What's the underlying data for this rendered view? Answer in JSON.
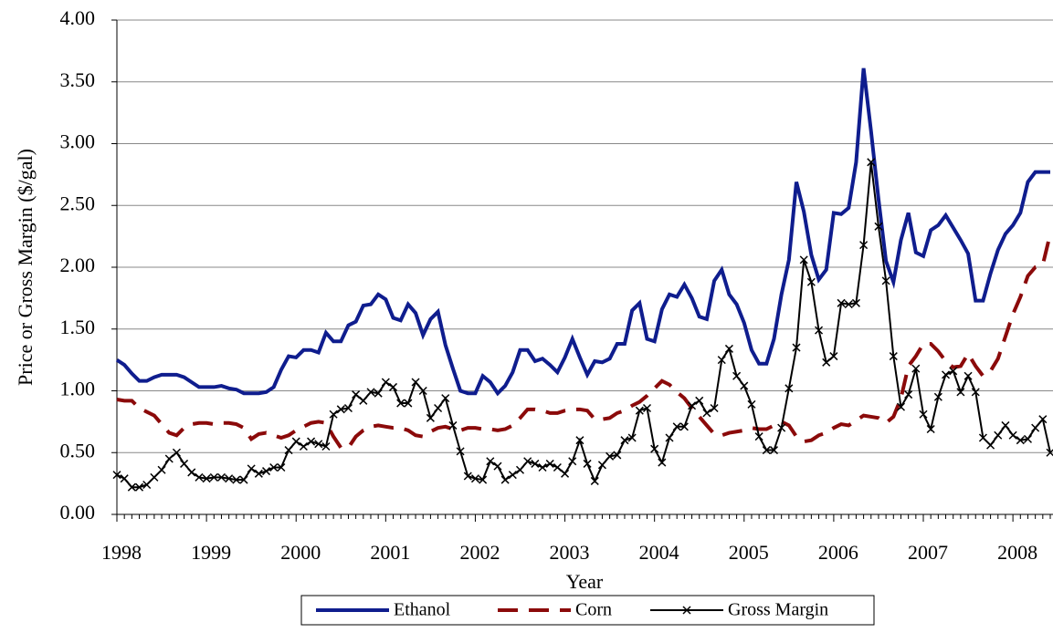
{
  "chart_data": {
    "type": "line",
    "x_label": "Year",
    "y_label": "Price or Gross Margin ($/gal)",
    "categories": [
      "1998",
      null,
      null,
      null,
      null,
      null,
      null,
      null,
      null,
      null,
      null,
      null,
      "1999",
      null,
      null,
      null,
      null,
      null,
      null,
      null,
      null,
      null,
      null,
      null,
      "2000",
      null,
      null,
      null,
      null,
      null,
      null,
      null,
      null,
      null,
      null,
      null,
      "2001",
      null,
      null,
      null,
      null,
      null,
      null,
      null,
      null,
      null,
      null,
      null,
      "2002",
      null,
      null,
      null,
      null,
      null,
      null,
      null,
      null,
      null,
      null,
      null,
      "2003",
      null,
      null,
      null,
      null,
      null,
      null,
      null,
      null,
      null,
      null,
      null,
      "2004",
      null,
      null,
      null,
      null,
      null,
      null,
      null,
      null,
      null,
      null,
      null,
      "2005",
      null,
      null,
      null,
      null,
      null,
      null,
      null,
      null,
      null,
      null,
      null,
      "2006",
      null,
      null,
      null,
      null,
      null,
      null,
      null,
      null,
      null,
      null,
      null,
      "2007",
      null,
      null,
      null,
      null,
      null,
      null,
      null,
      null,
      null,
      null,
      null,
      "2008",
      null,
      null,
      null,
      null,
      null
    ],
    "series": [
      {
        "name": "Ethanol",
        "color": "#0f1d8e",
        "line_style": "solid",
        "marker": "none",
        "values": [
          1.25,
          1.21,
          1.14,
          1.08,
          1.08,
          1.11,
          1.13,
          1.13,
          1.13,
          1.11,
          1.07,
          1.03,
          1.03,
          1.03,
          1.04,
          1.02,
          1.01,
          0.98,
          0.98,
          0.98,
          0.99,
          1.03,
          1.17,
          1.28,
          1.27,
          1.33,
          1.33,
          1.31,
          1.47,
          1.4,
          1.4,
          1.53,
          1.56,
          1.69,
          1.7,
          1.78,
          1.74,
          1.59,
          1.57,
          1.7,
          1.63,
          1.45,
          1.58,
          1.64,
          1.37,
          1.18,
          1.0,
          0.98,
          0.98,
          1.12,
          1.07,
          0.98,
          1.04,
          1.15,
          1.33,
          1.33,
          1.24,
          1.26,
          1.21,
          1.15,
          1.27,
          1.42,
          1.27,
          1.13,
          1.24,
          1.23,
          1.26,
          1.38,
          1.38,
          1.65,
          1.71,
          1.42,
          1.4,
          1.66,
          1.78,
          1.76,
          1.86,
          1.75,
          1.6,
          1.58,
          1.89,
          1.98,
          1.78,
          1.7,
          1.55,
          1.33,
          1.22,
          1.22,
          1.42,
          1.78,
          2.06,
          2.69,
          2.45,
          2.1,
          1.9,
          1.98,
          2.44,
          2.43,
          2.48,
          2.85,
          3.61,
          3.1,
          2.55,
          2.05,
          1.88,
          2.22,
          2.44,
          2.12,
          2.09,
          2.3,
          2.34,
          2.42,
          2.32,
          2.22,
          2.11,
          1.73,
          1.73,
          1.95,
          2.14,
          2.27,
          2.34,
          2.44,
          2.69,
          2.77,
          2.77,
          2.77
        ]
      },
      {
        "name": "Corn",
        "color": "#8b0a0a",
        "line_style": "dashed",
        "marker": "none",
        "values": [
          0.93,
          0.92,
          0.92,
          0.86,
          0.83,
          0.8,
          0.73,
          0.66,
          0.64,
          0.7,
          0.73,
          0.74,
          0.74,
          0.73,
          0.74,
          0.74,
          0.73,
          0.7,
          0.61,
          0.65,
          0.66,
          0.64,
          0.62,
          0.64,
          0.68,
          0.71,
          0.74,
          0.75,
          0.74,
          0.63,
          0.54,
          0.54,
          0.63,
          0.68,
          0.71,
          0.72,
          0.71,
          0.7,
          0.7,
          0.68,
          0.64,
          0.63,
          0.67,
          0.7,
          0.71,
          0.69,
          0.68,
          0.7,
          0.7,
          0.69,
          0.69,
          0.68,
          0.69,
          0.72,
          0.78,
          0.85,
          0.85,
          0.84,
          0.82,
          0.82,
          0.84,
          0.85,
          0.85,
          0.84,
          0.77,
          0.77,
          0.78,
          0.82,
          0.84,
          0.88,
          0.91,
          0.96,
          1.02,
          1.08,
          1.05,
          0.99,
          0.94,
          0.86,
          0.79,
          0.72,
          0.65,
          0.64,
          0.66,
          0.67,
          0.68,
          0.7,
          0.69,
          0.69,
          0.72,
          0.75,
          0.72,
          0.63,
          0.59,
          0.6,
          0.64,
          0.66,
          0.7,
          0.73,
          0.72,
          0.76,
          0.8,
          0.79,
          0.78,
          0.74,
          0.79,
          0.94,
          1.2,
          1.28,
          1.38,
          1.38,
          1.32,
          1.24,
          1.19,
          1.2,
          1.3,
          1.2,
          1.12,
          1.16,
          1.26,
          1.44,
          1.62,
          1.76,
          1.93,
          2.0,
          2.02,
          2.27
        ]
      },
      {
        "name": "Gross Margin",
        "color": "#000000",
        "line_style": "solid",
        "marker": "x",
        "values": [
          0.32,
          0.29,
          0.22,
          0.22,
          0.24,
          0.3,
          0.36,
          0.45,
          0.5,
          0.41,
          0.34,
          0.3,
          0.29,
          0.3,
          0.3,
          0.29,
          0.28,
          0.28,
          0.37,
          0.33,
          0.35,
          0.38,
          0.38,
          0.52,
          0.59,
          0.55,
          0.59,
          0.57,
          0.55,
          0.81,
          0.85,
          0.86,
          0.97,
          0.92,
          0.99,
          0.98,
          1.07,
          1.03,
          0.9,
          0.9,
          1.07,
          1.0,
          0.78,
          0.86,
          0.94,
          0.72,
          0.51,
          0.31,
          0.29,
          0.28,
          0.43,
          0.39,
          0.28,
          0.32,
          0.36,
          0.43,
          0.41,
          0.38,
          0.41,
          0.38,
          0.33,
          0.43,
          0.6,
          0.41,
          0.27,
          0.4,
          0.47,
          0.48,
          0.6,
          0.62,
          0.84,
          0.86,
          0.53,
          0.42,
          0.62,
          0.71,
          0.71,
          0.88,
          0.92,
          0.82,
          0.86,
          1.25,
          1.34,
          1.12,
          1.04,
          0.89,
          0.63,
          0.52,
          0.52,
          0.7,
          1.02,
          1.35,
          2.06,
          1.88,
          1.49,
          1.23,
          1.28,
          1.71,
          1.7,
          1.71,
          2.18,
          2.85,
          2.33,
          1.89,
          1.28,
          0.87,
          0.97,
          1.18,
          0.81,
          0.69,
          0.95,
          1.13,
          1.16,
          0.99,
          1.12,
          0.99,
          0.62,
          0.56,
          0.64,
          0.72,
          0.64,
          0.6,
          0.61,
          0.7,
          0.77,
          0.5
        ]
      }
    ],
    "ylim": [
      0,
      4
    ],
    "yticks": [
      {
        "value": 0,
        "label": "0.00"
      },
      {
        "value": 0.5,
        "label": "0.50"
      },
      {
        "value": 1,
        "label": "1.00"
      },
      {
        "value": 1.5,
        "label": "1.50"
      },
      {
        "value": 2,
        "label": "2.00"
      },
      {
        "value": 2.5,
        "label": "2.50"
      },
      {
        "value": 3,
        "label": "3.00"
      },
      {
        "value": 3.5,
        "label": "3.50"
      },
      {
        "value": 4,
        "label": "4.00"
      }
    ],
    "grid": true,
    "legend_position": "bottom"
  }
}
